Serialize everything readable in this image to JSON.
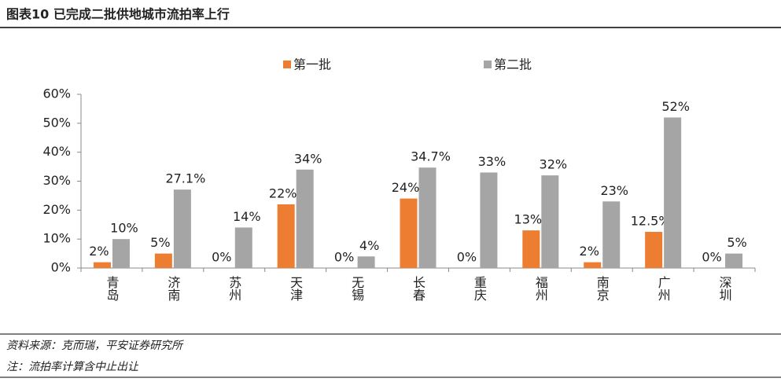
{
  "chart_data": {
    "type": "bar",
    "title": "图表10  已完成二批供地城市流拍率上行",
    "categories": [
      "青岛",
      "济南",
      "苏州",
      "天津",
      "无锡",
      "长春",
      "重庆",
      "福州",
      "南京",
      "广州",
      "深圳"
    ],
    "series": [
      {
        "name": "第一批",
        "color": "#ed7d31",
        "values": [
          2,
          5,
          0,
          22,
          0,
          24,
          0,
          13,
          2,
          12.5,
          0
        ],
        "value_labels": [
          "2%",
          "5%",
          "0%",
          "22%",
          "0%",
          "24%",
          "0%",
          "13%",
          "2%",
          "12.5%",
          "0%"
        ]
      },
      {
        "name": "第二批",
        "color": "#a5a5a5",
        "values": [
          10,
          27.1,
          14,
          34,
          4,
          34.7,
          33,
          32,
          23,
          52,
          5
        ],
        "value_labels": [
          "10%",
          "27.1%",
          "14%",
          "34%",
          "4%",
          "34.7%",
          "33%",
          "32%",
          "23%",
          "52%",
          "5%"
        ]
      }
    ],
    "ylim": [
      0,
      60
    ],
    "yticks": [
      {
        "value": 0,
        "label": "0%"
      },
      {
        "value": 10,
        "label": "10%"
      },
      {
        "value": 20,
        "label": "20%"
      },
      {
        "value": 30,
        "label": "30%"
      },
      {
        "value": 40,
        "label": "40%"
      },
      {
        "value": 50,
        "label": "50%"
      },
      {
        "value": 60,
        "label": "60%"
      }
    ],
    "grid": false,
    "legend": "top",
    "source": "资料来源：克而瑞，平安证券研究所",
    "note": "注：流拍率计算含中止出让"
  }
}
